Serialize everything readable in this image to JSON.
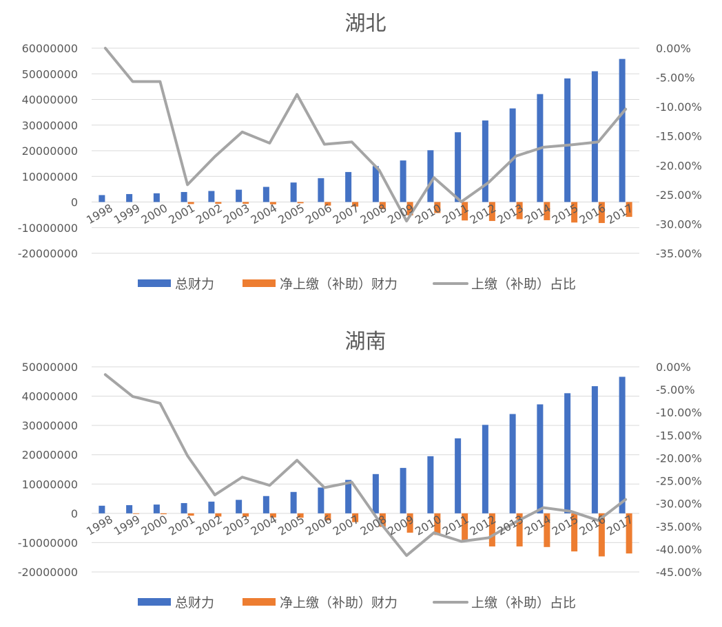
{
  "chart_data": [
    {
      "type": "bar+line",
      "title": "湖北",
      "categories": [
        "1998",
        "1999",
        "2000",
        "2001",
        "2002",
        "2003",
        "2004",
        "2005",
        "2006",
        "2007",
        "2008",
        "2009",
        "2010",
        "2011",
        "2012",
        "2013",
        "2014",
        "2015",
        "2016",
        "2017"
      ],
      "y_left": {
        "min": -20000000,
        "max": 60000000,
        "step": 10000000,
        "ticks": [
          "60000000",
          "50000000",
          "40000000",
          "30000000",
          "20000000",
          "10000000",
          "0",
          "-10000000",
          "-20000000"
        ]
      },
      "y_right": {
        "min": -35,
        "max": 0,
        "step": 5,
        "ticks": [
          "0.00%",
          "-5.00%",
          "-10.00%",
          "-15.00%",
          "-20.00%",
          "-25.00%",
          "-30.00%",
          "-35.00%"
        ]
      },
      "series": [
        {
          "name": "总财力",
          "kind": "bar",
          "axis": "left",
          "color": "#4472C4",
          "values": [
            2700000,
            3100000,
            3400000,
            3900000,
            4300000,
            4800000,
            5900000,
            7600000,
            9300000,
            11700000,
            14000000,
            16200000,
            20200000,
            27200000,
            31800000,
            36500000,
            42100000,
            48200000,
            51000000,
            55800000
          ]
        },
        {
          "name": "净上缴（补助）财力",
          "kind": "bar",
          "axis": "left",
          "color": "#ED7D31",
          "values": [
            0,
            0,
            0,
            -800000,
            -700000,
            -700000,
            -900000,
            -500000,
            -1400000,
            -1800000,
            -2800000,
            -5200000,
            -4300000,
            -7200000,
            -7400000,
            -6700000,
            -7100000,
            -8000000,
            -8200000,
            -5800000
          ]
        },
        {
          "name": "上缴（补助）占比",
          "kind": "line",
          "axis": "right",
          "color": "#A5A5A5",
          "values": [
            0,
            -5.7,
            -5.7,
            -23.3,
            -18.5,
            -14.3,
            -16.2,
            -7.9,
            -16.4,
            -16.0,
            -20.8,
            -29.5,
            -22.1,
            -26.2,
            -22.9,
            -18.4,
            -16.9,
            -16.5,
            -16.0,
            -10.4
          ]
        }
      ],
      "legend": "bottom"
    },
    {
      "type": "bar+line",
      "title": "湖南",
      "categories": [
        "1998",
        "1999",
        "2000",
        "2001",
        "2002",
        "2003",
        "2004",
        "2005",
        "2006",
        "2007",
        "2008",
        "2009",
        "2010",
        "2011",
        "2012",
        "2013",
        "2014",
        "2015",
        "2016",
        "2017"
      ],
      "y_left": {
        "min": -20000000,
        "max": 50000000,
        "step": 10000000,
        "ticks": [
          "50000000",
          "40000000",
          "30000000",
          "20000000",
          "10000000",
          "0",
          "-10000000",
          "-20000000"
        ]
      },
      "y_right": {
        "min": -45,
        "max": 0,
        "step": 5,
        "ticks": [
          "0.00%",
          "-5.00%",
          "-10.00%",
          "-15.00%",
          "-20.00%",
          "-25.00%",
          "-30.00%",
          "-35.00%",
          "-40.00%",
          "-45.00%"
        ]
      },
      "series": [
        {
          "name": "总财力",
          "kind": "bar",
          "axis": "left",
          "color": "#4472C4",
          "values": [
            2600000,
            2800000,
            3000000,
            3500000,
            4000000,
            4600000,
            5900000,
            7300000,
            8800000,
            11400000,
            13400000,
            15500000,
            19500000,
            25600000,
            30200000,
            33900000,
            37200000,
            41000000,
            43400000,
            46600000
          ]
        },
        {
          "name": "净上缴（补助）财力",
          "kind": "bar",
          "axis": "left",
          "color": "#ED7D31",
          "values": [
            0,
            -200000,
            -300000,
            -800000,
            -1100000,
            -1100000,
            -1400000,
            -1500000,
            -2400000,
            -3000000,
            -4600000,
            -6600000,
            -7400000,
            -9700000,
            -11300000,
            -11300000,
            -11500000,
            -13000000,
            -14700000,
            -13700000
          ]
        },
        {
          "name": "上缴（补助）占比",
          "kind": "line",
          "axis": "right",
          "color": "#A5A5A5",
          "values": [
            -1.7,
            -6.5,
            -8.0,
            -19.5,
            -28.1,
            -24.2,
            -26.0,
            -20.5,
            -26.5,
            -25.3,
            -33.9,
            -41.4,
            -36.4,
            -38.3,
            -37.5,
            -34.0,
            -30.9,
            -31.7,
            -33.7,
            -29.1
          ]
        }
      ],
      "legend": "bottom"
    }
  ]
}
